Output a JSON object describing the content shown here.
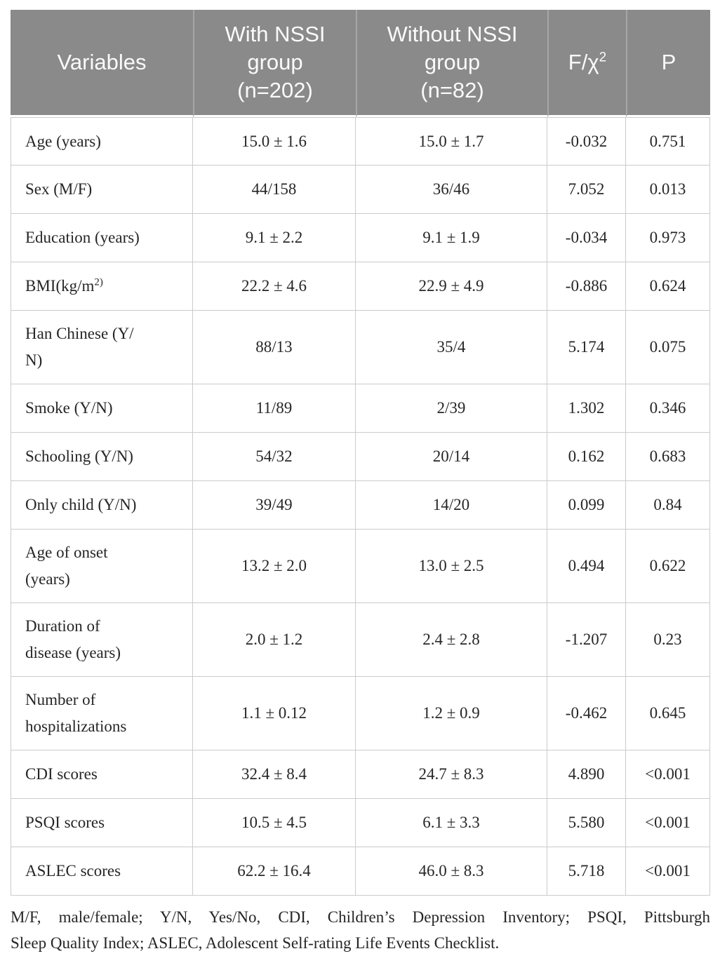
{
  "colors": {
    "header_bg": "#8a8a8a",
    "header_text": "#fafafa",
    "header_divider": "#a6a6a6",
    "body_border": "#cbcbcb",
    "body_text": "#262626"
  },
  "table": {
    "columns": [
      {
        "id": "variable",
        "label": "Variables"
      },
      {
        "id": "with_nssi",
        "label": "With NSSI group (n=202)",
        "lines": [
          "With NSSI",
          "group",
          "(n=202)"
        ]
      },
      {
        "id": "without_nssi",
        "label": "Without NSSI group (n=82)",
        "lines": [
          "Without NSSI",
          "group",
          "(n=82)"
        ]
      },
      {
        "id": "f_chi2",
        "base": "F/χ",
        "sup": "2"
      },
      {
        "id": "p",
        "label": "P"
      }
    ],
    "rows": [
      {
        "variable": "Age (years)",
        "with_nssi": "15.0 ± 1.6",
        "without_nssi": "15.0 ± 1.7",
        "f_chi2": "-0.032",
        "p": "0.751"
      },
      {
        "variable": "Sex (M/F)",
        "with_nssi": "44/158",
        "without_nssi": "36/46",
        "f_chi2": "7.052",
        "p": "0.013"
      },
      {
        "variable": "Education (years)",
        "with_nssi": "9.1 ± 2.2",
        "without_nssi": "9.1 ± 1.9",
        "f_chi2": "-0.034",
        "p": "0.973"
      },
      {
        "variable": "BMI(kg/m",
        "variable_sup": "2)",
        "with_nssi": "22.2 ± 4.6",
        "without_nssi": "22.9 ± 4.9",
        "f_chi2": "-0.886",
        "p": "0.624"
      },
      {
        "variable_lines": [
          "Han Chinese (Y/",
          "N)"
        ],
        "with_nssi": "88/13",
        "without_nssi": "35/4",
        "f_chi2": "5.174",
        "p": "0.075"
      },
      {
        "variable": "Smoke (Y/N)",
        "with_nssi": "11/89",
        "without_nssi": "2/39",
        "f_chi2": "1.302",
        "p": "0.346"
      },
      {
        "variable": "Schooling (Y/N)",
        "with_nssi": "54/32",
        "without_nssi": "20/14",
        "f_chi2": "0.162",
        "p": "0.683"
      },
      {
        "variable": "Only child (Y/N)",
        "with_nssi": "39/49",
        "without_nssi": "14/20",
        "f_chi2": "0.099",
        "p": "0.84"
      },
      {
        "variable_lines": [
          "Age of onset",
          "(years)"
        ],
        "with_nssi": "13.2 ± 2.0",
        "without_nssi": "13.0 ± 2.5",
        "f_chi2": "0.494",
        "p": "0.622"
      },
      {
        "variable_lines": [
          "Duration of",
          "disease (years)"
        ],
        "with_nssi": "2.0 ± 1.2",
        "without_nssi": "2.4 ± 2.8",
        "f_chi2": "-1.207",
        "p": "0.23"
      },
      {
        "variable_lines": [
          "Number of",
          "hospitalizations"
        ],
        "with_nssi": "1.1 ± 0.12",
        "without_nssi": "1.2 ± 0.9",
        "f_chi2": "-0.462",
        "p": "0.645"
      },
      {
        "variable": "CDI scores",
        "with_nssi": "32.4 ± 8.4",
        "without_nssi": "24.7 ± 8.3",
        "f_chi2": "4.890",
        "p": "<0.001"
      },
      {
        "variable": "PSQI scores",
        "with_nssi": "10.5 ± 4.5",
        "without_nssi": "6.1 ± 3.3",
        "f_chi2": "5.580",
        "p": "<0.001"
      },
      {
        "variable": "ASLEC scores",
        "with_nssi": "62.2 ± 16.4",
        "without_nssi": "46.0 ± 8.3",
        "f_chi2": "5.718",
        "p": "<0.001"
      }
    ]
  },
  "footnote": {
    "lines": [
      "M/F, male/female; Y/N, Yes/No, CDI, Children’s Depression Inventory; PSQI, Pittsburgh",
      "Sleep Quality Index; ASLEC, Adolescent Self-rating Life Events Checklist."
    ]
  }
}
